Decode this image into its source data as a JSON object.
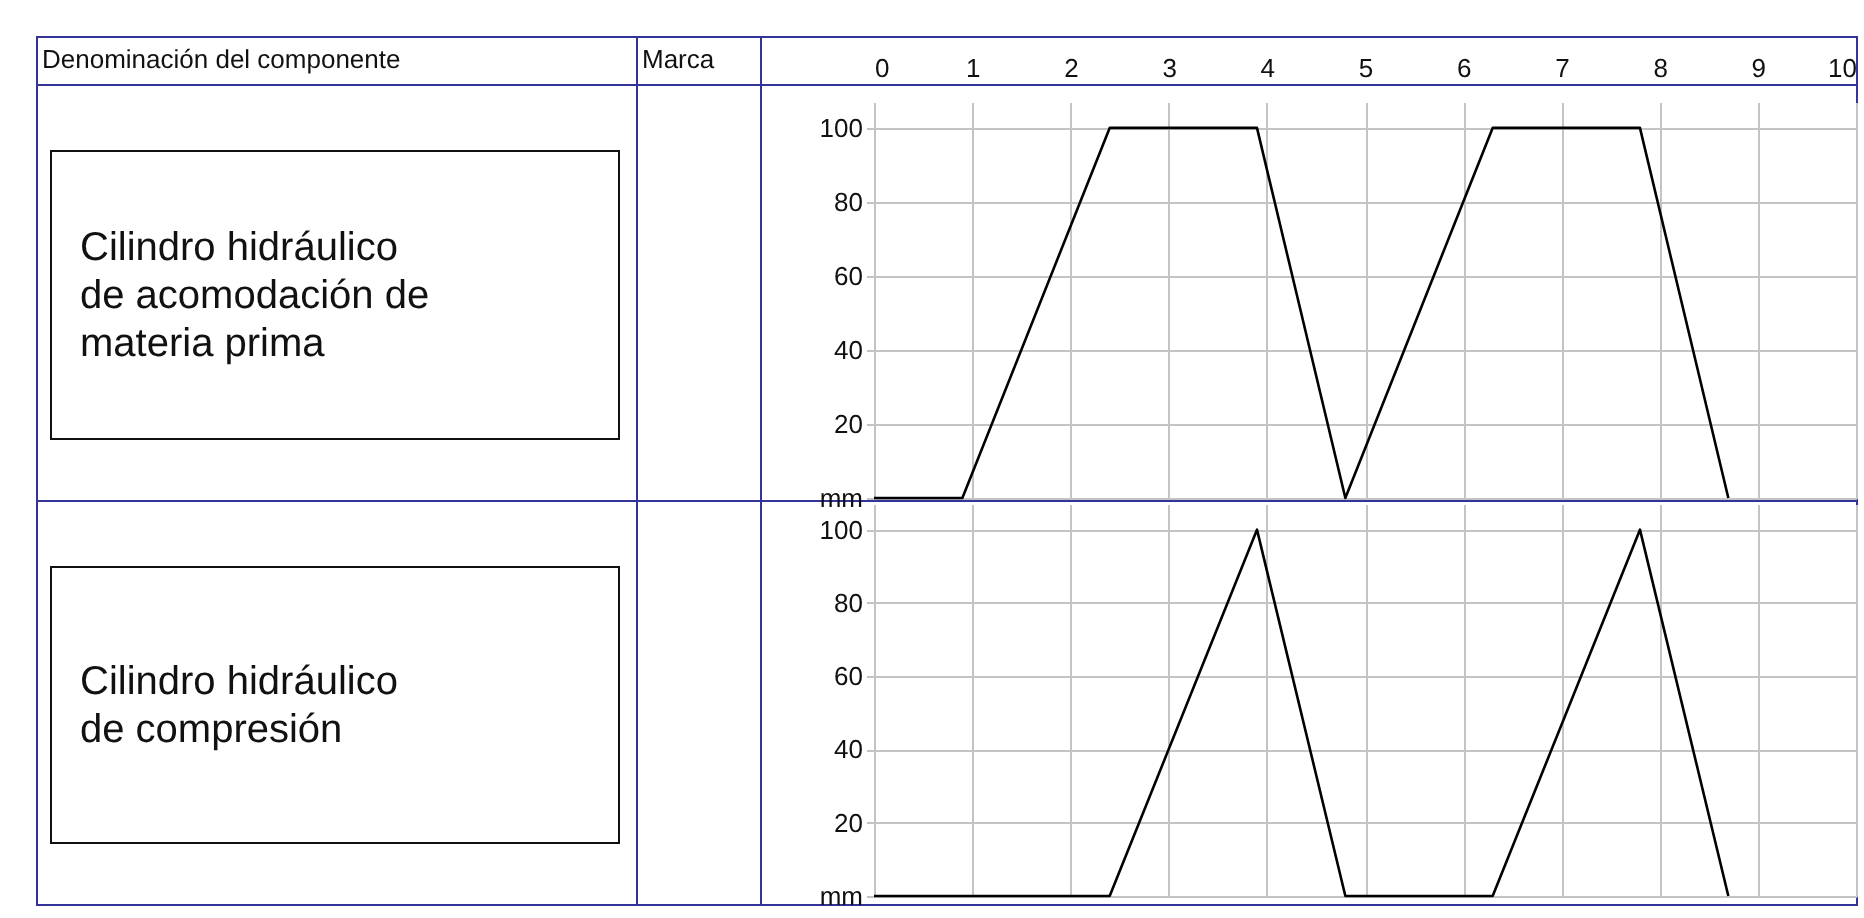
{
  "chart_data": [
    {
      "type": "line",
      "ylabel": "Cilindro hidráulico de acomodación de materia prima",
      "annotations": [
        "Denominación del componente",
        "Marca"
      ],
      "x": [
        0,
        0.9,
        2.4,
        3.9,
        4.8,
        6.3,
        7.8,
        8.7
      ],
      "series": [
        {
          "color": "#000000",
          "values": [
            0,
            0,
            100,
            100,
            0,
            100,
            100,
            0
          ]
        }
      ],
      "xlim": [
        0,
        10
      ],
      "xticks": [
        0,
        1,
        2,
        3,
        4,
        5,
        6,
        7,
        8,
        9,
        10
      ],
      "ylim": [
        0,
        107
      ],
      "yticks": [
        {
          "value": 0,
          "label": "mm"
        },
        20,
        40,
        60,
        80,
        100
      ],
      "grid": true
    },
    {
      "type": "line",
      "ylabel": "Cilindro hidráulico de compresión",
      "x": [
        0,
        2.4,
        3.9,
        4.8,
        6.3,
        7.8,
        8.7
      ],
      "series": [
        {
          "color": "#000000",
          "values": [
            0,
            0,
            100,
            0,
            0,
            100,
            0
          ]
        }
      ],
      "xlim": [
        0,
        10
      ],
      "xticks": [
        0,
        1,
        2,
        3,
        4,
        5,
        6,
        7,
        8,
        9,
        10
      ],
      "ylim": [
        0,
        107
      ],
      "yticks": [
        {
          "value": 0,
          "label": "mm"
        },
        20,
        40,
        60,
        80,
        100
      ],
      "grid": true,
      "tick_labels": "y"
    }
  ]
}
